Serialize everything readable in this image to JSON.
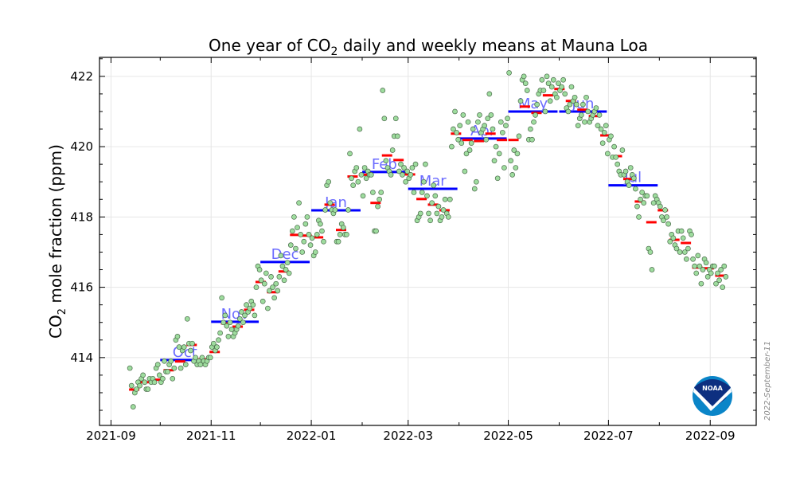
{
  "chart_data": {
    "type": "scatter",
    "title": {
      "pre": "One year of CO",
      "sub": "2",
      "post": " daily and weekly means at Mauna Loa"
    },
    "ylabel": {
      "pre": "CO",
      "sub": "2",
      "post": " mole fraction (ppm)"
    },
    "xlabel": "",
    "xlim": [
      "2021-08-25",
      "2022-09-29"
    ],
    "ylim": [
      412.07,
      422.54
    ],
    "grid": true,
    "x_ticks": [
      "2021-09",
      "2021-11",
      "2022-01",
      "2022-03",
      "2022-05",
      "2022-07",
      "2022-09"
    ],
    "y_ticks": [
      414,
      416,
      418,
      420,
      422
    ],
    "date_stamp": "2022-September-11",
    "logo_text": "NOAA",
    "colors": {
      "daily_fill": "#9edc9e",
      "daily_edge": "#4a6a4a",
      "weekly": "#ff0000",
      "monthly": "#0000ff",
      "month_label": "#6b6bff"
    },
    "monthly": [
      {
        "label": "Oct",
        "month": "2021-10",
        "value": 413.93
      },
      {
        "label": "Nov",
        "month": "2021-11",
        "value": 415.02
      },
      {
        "label": "Dec",
        "month": "2021-12",
        "value": 416.72
      },
      {
        "label": "Jan",
        "month": "2022-01",
        "value": 418.19
      },
      {
        "label": "Feb",
        "month": "2022-02",
        "value": 419.28
      },
      {
        "label": "Mar",
        "month": "2022-03",
        "value": 418.8
      },
      {
        "label": "Apr",
        "month": "2022-04",
        "value": 420.23
      },
      {
        "label": "May",
        "month": "2022-05",
        "value": 421.0
      },
      {
        "label": "Jun",
        "month": "2022-06",
        "value": 421.0
      },
      {
        "label": "Jul",
        "month": "2022-07",
        "value": 418.9
      }
    ],
    "weekly_first_start": "2021-09-12",
    "weekly": [
      413.09,
      413.3,
      413.37,
      413.64,
      413.89,
      414.36,
      413.95,
      414.16,
      414.97,
      414.88,
      415.36,
      416.15,
      415.86,
      416.45,
      417.49,
      417.47,
      417.42,
      418.35,
      417.63,
      419.15,
      419.2,
      418.4,
      419.75,
      419.62,
      419.21,
      418.51,
      418.35,
      418.19,
      420.37,
      420.19,
      420.16,
      420.37,
      420.19,
      420.19,
      421.14,
      420.96,
      421.46,
      421.64,
      421.3,
      421.05,
      420.87,
      420.32,
      419.73,
      419.08,
      418.44,
      417.85,
      418.19,
      417.35,
      417.26,
      416.56,
      416.54,
      416.33
    ],
    "daily_by_week": [
      [
        413.7,
        413.2,
        412.6,
        413.0,
        413.1,
        413.3,
        413.2
      ],
      [
        413.4,
        413.5,
        413.3,
        413.1,
        413.1,
        413.4,
        413.3
      ],
      [
        413.4,
        413.3,
        413.7,
        413.8,
        413.5,
        413.3,
        413.4
      ],
      [
        413.9,
        413.6,
        413.6,
        413.8,
        413.9,
        413.4,
        413.7
      ],
      [
        414.5,
        414.6,
        414.3,
        413.7,
        414.2,
        414.3,
        413.8
      ],
      [
        415.1,
        414.4,
        414.2,
        414.4,
        413.9,
        414.0,
        413.8
      ],
      [
        413.9,
        413.8,
        414.0,
        413.9,
        413.8,
        413.9,
        414.0
      ],
      [
        414.0,
        414.3,
        414.4,
        414.2,
        414.3,
        414.5,
        414.7
      ],
      [
        415.7,
        415.0,
        415.2,
        414.9,
        414.6,
        415.0,
        414.8
      ],
      [
        414.6,
        414.7,
        414.8,
        414.9,
        415.1,
        415.3,
        415.0
      ],
      [
        415.2,
        415.5,
        415.3,
        415.4,
        415.6,
        415.5,
        415.2
      ],
      [
        416.0,
        416.6,
        416.5,
        416.2,
        415.6,
        416.1,
        416.4
      ],
      [
        415.4,
        415.9,
        416.3,
        416.0,
        415.7,
        416.1,
        415.9
      ],
      [
        416.3,
        416.9,
        416.6,
        416.2,
        416.5,
        416.7,
        416.4
      ],
      [
        417.2,
        417.6,
        418.0,
        417.1,
        417.7,
        418.4,
        417.5
      ],
      [
        417.0,
        417.3,
        417.8,
        418.0,
        417.5,
        417.2,
        417.4
      ],
      [
        416.9,
        417.0,
        417.5,
        417.9,
        417.8,
        417.6,
        417.3
      ],
      [
        418.2,
        418.9,
        419.0,
        418.4,
        418.2,
        418.1,
        418.2
      ],
      [
        417.3,
        417.3,
        417.5,
        417.8,
        417.7,
        417.5,
        417.5
      ],
      [
        418.2,
        419.8,
        419.1,
        418.9,
        419.3,
        419.4,
        419.0
      ],
      [
        420.5,
        419.2,
        418.6,
        419.4,
        419.1,
        419.3,
        419.2
      ],
      [
        419.2,
        418.7,
        417.6,
        417.6,
        418.3,
        418.5,
        418.7
      ],
      [
        421.6,
        420.8,
        419.6,
        419.4,
        419.3,
        419.2,
        419.9
      ],
      [
        420.3,
        420.8,
        420.3,
        419.3,
        419.5,
        419.2,
        419.4
      ],
      [
        419.0,
        419.3,
        419.1,
        419.2,
        419.4,
        418.7,
        419.5
      ],
      [
        417.9,
        418.0,
        418.1,
        418.7,
        419.0,
        419.5,
        418.6
      ],
      [
        418.1,
        417.9,
        418.4,
        418.9,
        418.6,
        418.1,
        418.3
      ],
      [
        417.9,
        418.0,
        418.2,
        418.5,
        418.1,
        418.0,
        418.5
      ],
      [
        420.0,
        420.5,
        421.0,
        420.4,
        420.2,
        420.6,
        420.1
      ],
      [
        420.9,
        419.3,
        419.8,
        420.7,
        419.9,
        420.1,
        420.5
      ],
      [
        418.8,
        419.0,
        420.7,
        420.9,
        420.4,
        420.5,
        420.6
      ],
      [
        420.2,
        420.8,
        421.5,
        420.9,
        420.5,
        419.6,
        420.0
      ],
      [
        419.1,
        419.8,
        420.7,
        420.4,
        419.4,
        420.6,
        420.8
      ],
      [
        422.1,
        419.6,
        419.2,
        419.9,
        419.4,
        419.8,
        420.3
      ],
      [
        421.3,
        421.9,
        422.0,
        421.8,
        421.6,
        420.2,
        420.5
      ],
      [
        420.2,
        420.7,
        420.9,
        421.2,
        421.5,
        421.6,
        421.9
      ],
      [
        421.6,
        421.0,
        422.0,
        421.8,
        421.3,
        421.7,
        421.9
      ],
      [
        421.5,
        421.4,
        421.8,
        421.6,
        421.7,
        421.9,
        421.5
      ],
      [
        421.1,
        421.0,
        421.2,
        421.7,
        421.3,
        421.4,
        421.2
      ],
      [
        420.6,
        420.8,
        420.9,
        421.2,
        420.7,
        421.4,
        421.0
      ],
      [
        420.7,
        420.8,
        420.9,
        421.0,
        421.1,
        420.6,
        420.9
      ],
      [
        420.5,
        420.1,
        420.4,
        420.6,
        419.8,
        420.2,
        420.3
      ],
      [
        419.7,
        420.0,
        419.7,
        419.5,
        419.3,
        419.2,
        419.9
      ],
      [
        419.2,
        419.3,
        419.0,
        418.9,
        419.4,
        419.2,
        419.1
      ],
      [
        418.8,
        418.3,
        418.0,
        418.5,
        418.7,
        418.4,
        418.6
      ],
      [
        418.6,
        417.1,
        417.0,
        416.5,
        418.4,
        418.6,
        418.5
      ],
      [
        418.4,
        418.3,
        418.0,
        417.9,
        418.2,
        418.0,
        417.8
      ],
      [
        417.3,
        417.5,
        417.4,
        417.2,
        417.1,
        417.6,
        417.0
      ],
      [
        417.6,
        417.4,
        417.0,
        416.8,
        417.1,
        417.6,
        417.5
      ],
      [
        416.8,
        416.6,
        416.4,
        416.9,
        416.6,
        416.1,
        416.5
      ],
      [
        416.8,
        416.7,
        416.3,
        416.5,
        416.4,
        416.6,
        416.6
      ],
      [
        416.1,
        416.4,
        416.2,
        416.5,
        416.0,
        416.6,
        416.3
      ]
    ]
  }
}
